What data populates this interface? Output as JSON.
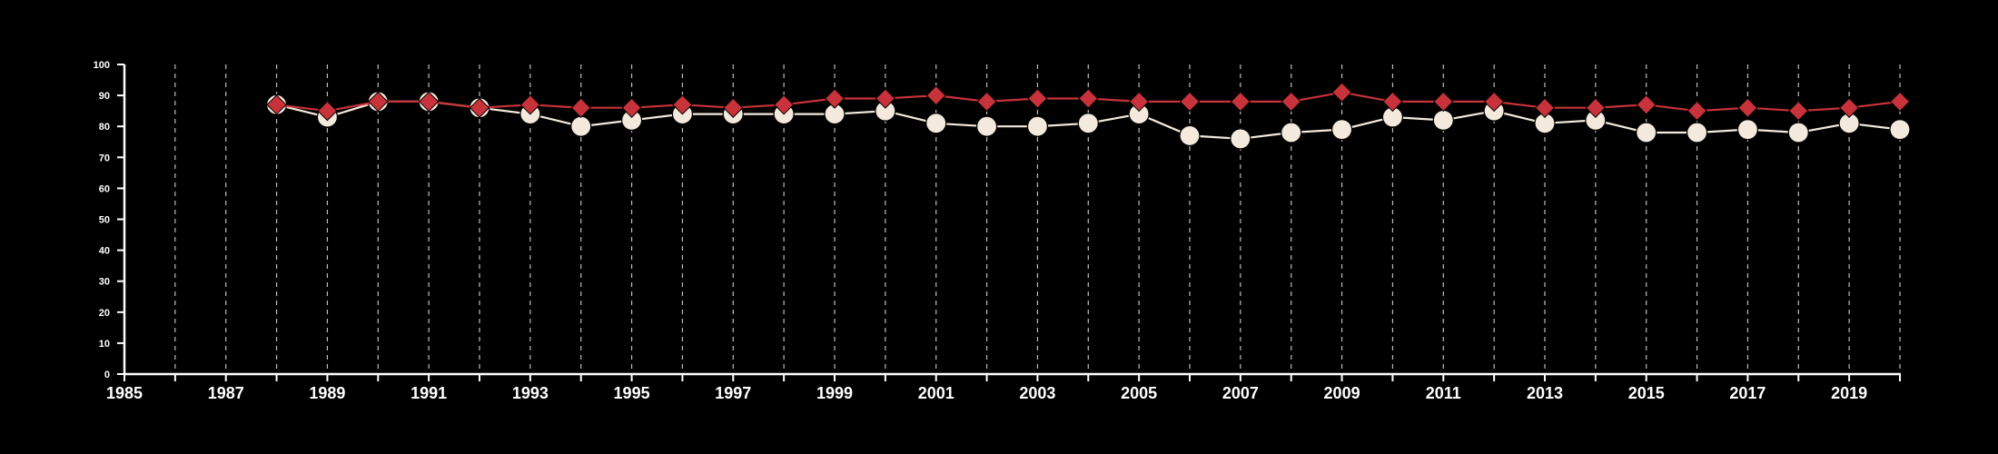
{
  "chart_data": {
    "type": "line",
    "title": "",
    "xlabel": "",
    "ylabel": "",
    "xlim": [
      1985,
      2020
    ],
    "ylim": [
      0,
      100
    ],
    "x_tick_labels": [
      "1985",
      "1987",
      "1989",
      "1991",
      "1993",
      "1995",
      "1997",
      "1999",
      "2001",
      "2003",
      "2005",
      "2007",
      "2009",
      "2011",
      "2013",
      "2015",
      "2017",
      "2019"
    ],
    "y_tick_labels": [
      "0",
      "10",
      "20",
      "30",
      "40",
      "50",
      "60",
      "70",
      "80",
      "90",
      "100"
    ],
    "grid": "vertical dashed lines at every year",
    "legend": "none",
    "background_color": "#000000",
    "axis_color": "#ffffff",
    "x": [
      1988,
      1989,
      1990,
      1991,
      1992,
      1993,
      1994,
      1995,
      1996,
      1997,
      1998,
      1999,
      2000,
      2001,
      2002,
      2003,
      2004,
      2005,
      2006,
      2007,
      2008,
      2009,
      2010,
      2011,
      2012,
      2013,
      2014,
      2015,
      2016,
      2017,
      2018,
      2019,
      2020
    ],
    "series": [
      {
        "marker": "diamond",
        "color": "#c8323a",
        "values": [
          87,
          85,
          88,
          88,
          86,
          87,
          86,
          86,
          87,
          86,
          87,
          89,
          89,
          90,
          88,
          89,
          89,
          88,
          88,
          88,
          88,
          91,
          88,
          88,
          88,
          86,
          86,
          87,
          85,
          86,
          85,
          86,
          88
        ]
      },
      {
        "marker": "circle",
        "color": "#f3e9dc",
        "values": [
          87,
          83,
          88,
          88,
          86,
          84,
          80,
          82,
          84,
          84,
          84,
          84,
          85,
          81,
          80,
          80,
          81,
          84,
          77,
          76,
          78,
          79,
          83,
          82,
          85,
          81,
          82,
          78,
          78,
          79,
          78,
          81,
          79
        ]
      }
    ]
  }
}
